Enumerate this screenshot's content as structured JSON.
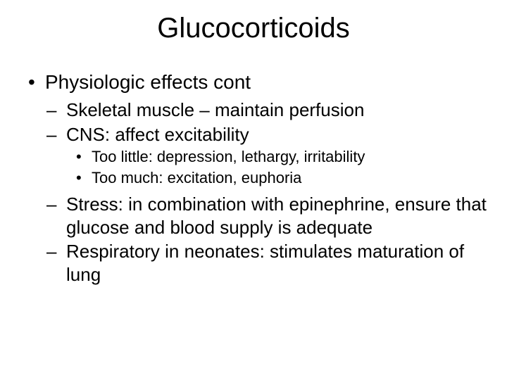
{
  "slide": {
    "title": "Glucocorticoids",
    "background_color": "#ffffff",
    "text_color": "#000000",
    "font_family": "Arial",
    "title_fontsize": 40,
    "l1_fontsize": 28,
    "l2_fontsize": 26,
    "l3_fontsize": 22,
    "bullets": {
      "l1_0": "Physiologic effects cont",
      "l2_0": "Skeletal muscle – maintain perfusion",
      "l2_1": "CNS: affect excitability",
      "l3_0": "Too little: depression, lethargy, irritability",
      "l3_1": "Too much: excitation, euphoria",
      "l2_2": "Stress: in combination with epinephrine, ensure that glucose and blood supply is adequate",
      "l2_3": "Respiratory in neonates: stimulates maturation of lung"
    }
  }
}
